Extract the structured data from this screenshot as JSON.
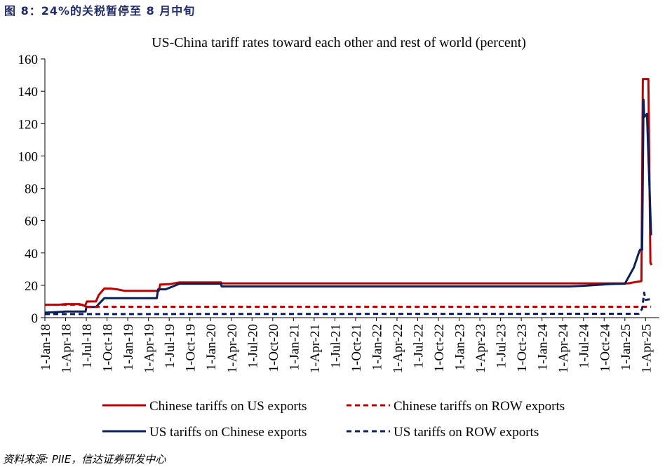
{
  "figure_label": "图 8：24%的关税暂停至 8 月中旬",
  "source": "资料来源: PIIE，信达证券研发中心",
  "colors": {
    "red": "#c00000",
    "navy": "#0a1f5c"
  },
  "chart_data": {
    "type": "line",
    "title": "US-China tariff rates toward each other and rest of world (percent)",
    "xlabel": "",
    "ylabel": "",
    "ylim": [
      0,
      160
    ],
    "yticks": [
      0,
      20,
      40,
      60,
      80,
      100,
      120,
      140,
      160
    ],
    "xlim": [
      0,
      89
    ],
    "x_unit": "months since 1-Jan-18",
    "xticks": [
      {
        "label": "1-Jan-18",
        "x": 0
      },
      {
        "label": "1-Apr-18",
        "x": 3
      },
      {
        "label": "1-Jul-18",
        "x": 6
      },
      {
        "label": "1-Oct-18",
        "x": 9
      },
      {
        "label": "1-Jan-19",
        "x": 12
      },
      {
        "label": "1-Apr-19",
        "x": 15
      },
      {
        "label": "1-Jul-19",
        "x": 18
      },
      {
        "label": "1-Oct-19",
        "x": 21
      },
      {
        "label": "1-Jan-20",
        "x": 24
      },
      {
        "label": "1-Apr-20",
        "x": 27
      },
      {
        "label": "1-Jul-20",
        "x": 30
      },
      {
        "label": "1-Oct-20",
        "x": 33
      },
      {
        "label": "1-Jan-21",
        "x": 36
      },
      {
        "label": "1-Apr-21",
        "x": 39
      },
      {
        "label": "1-Jul-21",
        "x": 42
      },
      {
        "label": "1-Oct-21",
        "x": 45
      },
      {
        "label": "1-Jan-22",
        "x": 48
      },
      {
        "label": "1-Apr-22",
        "x": 51
      },
      {
        "label": "1-Jul-22",
        "x": 54
      },
      {
        "label": "1-Oct-22",
        "x": 57
      },
      {
        "label": "1-Jan-23",
        "x": 60
      },
      {
        "label": "1-Apr-23",
        "x": 63
      },
      {
        "label": "1-Jul-23",
        "x": 66
      },
      {
        "label": "1-Oct-23",
        "x": 69
      },
      {
        "label": "1-Jan-24",
        "x": 72
      },
      {
        "label": "1-Apr-24",
        "x": 75
      },
      {
        "label": "1-Jul-24",
        "x": 78
      },
      {
        "label": "1-Oct-24",
        "x": 81
      },
      {
        "label": "1-Jan-25",
        "x": 84
      },
      {
        "label": "1-Apr-25",
        "x": 87
      }
    ],
    "legend_position": "bottom",
    "series": [
      {
        "name": "Chinese tariffs on US exports",
        "color": "#c00000",
        "style": "solid",
        "points": [
          [
            0,
            8
          ],
          [
            2,
            8
          ],
          [
            3,
            8.4
          ],
          [
            5,
            8.4
          ],
          [
            5.8,
            7.2
          ],
          [
            6.1,
            10
          ],
          [
            7.4,
            10
          ],
          [
            7.8,
            14
          ],
          [
            8.6,
            18
          ],
          [
            9.5,
            18
          ],
          [
            10.5,
            17.5
          ],
          [
            11.5,
            16.6
          ],
          [
            16.5,
            16.6
          ],
          [
            16.7,
            20.5
          ],
          [
            18,
            20.7
          ],
          [
            19.5,
            21.8
          ],
          [
            25.5,
            21.8
          ],
          [
            25.6,
            21.2
          ],
          [
            84.5,
            21.2
          ],
          [
            85.5,
            22
          ],
          [
            86.4,
            22.6
          ],
          [
            86.6,
            147.6
          ],
          [
            87.4,
            147.6
          ],
          [
            87.7,
            34
          ],
          [
            87.85,
            32.5
          ]
        ]
      },
      {
        "name": "US tariffs on Chinese exports",
        "color": "#0a1f5c",
        "style": "solid",
        "points": [
          [
            0,
            3.1
          ],
          [
            2,
            3.5
          ],
          [
            3,
            3.8
          ],
          [
            5,
            3.8
          ],
          [
            5.9,
            3.8
          ],
          [
            6,
            6.6
          ],
          [
            7.4,
            6.6
          ],
          [
            8.6,
            12
          ],
          [
            9.5,
            12
          ],
          [
            16.2,
            12
          ],
          [
            16.4,
            17.5
          ],
          [
            17.5,
            17.5
          ],
          [
            19.5,
            21
          ],
          [
            25.5,
            21
          ],
          [
            25.6,
            19.3
          ],
          [
            76,
            19.3
          ],
          [
            78,
            19.7
          ],
          [
            82,
            20.8
          ],
          [
            84,
            21
          ],
          [
            85.3,
            31
          ],
          [
            86,
            40
          ],
          [
            86.2,
            42
          ],
          [
            86.5,
            42
          ],
          [
            86.7,
            134.7
          ],
          [
            86.8,
            124
          ],
          [
            87.2,
            126
          ],
          [
            87.8,
            51
          ]
        ]
      },
      {
        "name": "Chinese tariffs on ROW exports",
        "color": "#c00000",
        "style": "dashed",
        "points": [
          [
            0,
            8
          ],
          [
            5.5,
            8
          ],
          [
            6,
            6.7
          ],
          [
            87.8,
            6.7
          ]
        ]
      },
      {
        "name": "US tariffs on ROW exports",
        "color": "#0a1f5c",
        "style": "dashed",
        "points": [
          [
            0,
            2.2
          ],
          [
            86,
            2.4
          ],
          [
            86.5,
            5.5
          ],
          [
            86.8,
            15.5
          ],
          [
            87,
            11
          ],
          [
            87.8,
            11.5
          ]
        ]
      }
    ]
  }
}
